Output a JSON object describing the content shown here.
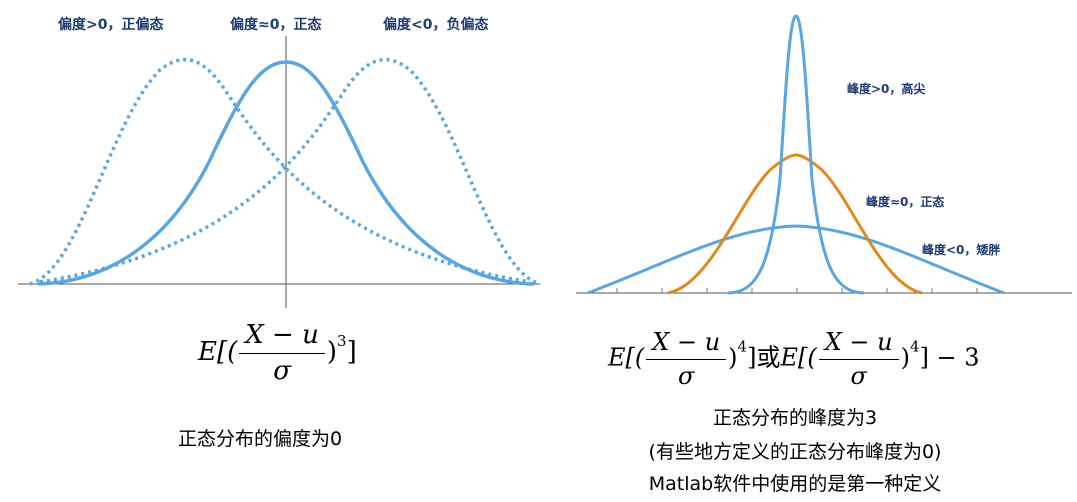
{
  "skewness": {
    "labels": {
      "positive": "偏度>0，正偏态",
      "zero": "偏度≈0，正态",
      "negative": "偏度<0，负偏态"
    },
    "formula": {
      "lhs": "E[(",
      "numerator": "X − u",
      "denominator": "σ",
      "rhs": ")",
      "power": "3",
      "close": "]"
    },
    "caption": "正态分布的偏度为0"
  },
  "kurtosis": {
    "labels": {
      "high": "峰度>0，高尖",
      "zero": "峰度≈0，正态",
      "low": "峰度<0，矮胖"
    },
    "formula": {
      "part1_lhs": "E[(",
      "part1_numerator": "X − u",
      "part1_denominator": "σ",
      "part1_rhs": ")",
      "part1_power": "4",
      "part1_close": "]",
      "connector": "或",
      "part2_lhs": "E[(",
      "part2_numerator": "X − u",
      "part2_denominator": "σ",
      "part2_rhs": ")",
      "part2_power": "4",
      "part2_close": "] − 3"
    },
    "caption_lines": [
      "正态分布的峰度为3",
      "(有些地方定义的正态分布峰度为0)",
      "Matlab软件中使用的是第一种定义"
    ]
  },
  "colors": {
    "blue_curve": "#5aa6e0",
    "orange_curve": "#e08a1e",
    "label_text": "#1f3a73",
    "axis": "#555555"
  }
}
